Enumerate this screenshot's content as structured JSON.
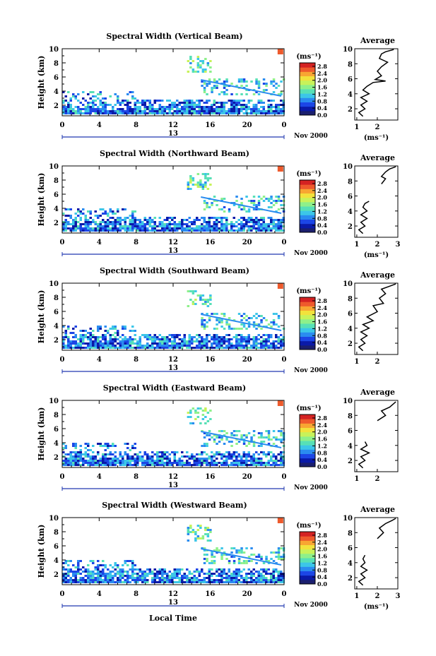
{
  "colors": {
    "colormap": [
      "#1b1f6e",
      "#0a1aa8",
      "#1c46e6",
      "#2a8cf0",
      "#3cc6e8",
      "#57e0b6",
      "#8ef08a",
      "#c8f25a",
      "#f2e23c",
      "#f8a632",
      "#ee5a2c",
      "#d42222"
    ],
    "axis": "#000000",
    "time_axis_line": "#2038b0"
  },
  "figure": {
    "xlabel": "Local Time",
    "date_label": "Nov 2000",
    "day_label": "13",
    "avg_xlabel": "(ms⁻¹)",
    "colorbar_label": "(ms⁻¹)"
  },
  "chart_data": [
    {
      "type": "heatmap",
      "title": "Spectral Width (Vertical Beam)",
      "ylabel": "Height (km)",
      "x_ticks": [
        "0",
        "4",
        "8",
        "12",
        "16",
        "20",
        "0"
      ],
      "y_ticks": [
        "2",
        "4",
        "6",
        "8",
        "10"
      ],
      "xlim": [
        0,
        24
      ],
      "ylim": [
        0.5,
        10
      ],
      "colorbar_ticks": [
        "0.0",
        "0.4",
        "0.8",
        "1.2",
        "1.6",
        "2.0",
        "2.4",
        "2.8"
      ],
      "colorbar_range": [
        0,
        3.0
      ],
      "regions": [
        {
          "x": [
            0,
            24
          ],
          "y": [
            0.8,
            2.8
          ],
          "v": 0.8
        },
        {
          "x": [
            0,
            8
          ],
          "y": [
            2.8,
            4.0
          ],
          "v": 0.9
        },
        {
          "x": [
            13.5,
            16
          ],
          "y": [
            6.8,
            9.0
          ],
          "v": 1.4
        },
        {
          "x": [
            15,
            24
          ],
          "y": [
            3.5,
            5.8
          ],
          "v": 1.2
        }
      ],
      "average": {
        "title": "Average",
        "xlabel": "(ms⁻¹)",
        "x_ticks": [
          "1",
          "2"
        ],
        "xlim": [
          0.9,
          3.0
        ],
        "y_ticks": [
          "2",
          "4",
          "6",
          "8",
          "10"
        ],
        "ylim": [
          0.5,
          10
        ],
        "profile": [
          [
            1.3,
            1.0
          ],
          [
            1.1,
            1.5
          ],
          [
            1.4,
            2.0
          ],
          [
            1.2,
            2.5
          ],
          [
            1.5,
            3.0
          ],
          [
            1.2,
            3.5
          ],
          [
            1.6,
            4.0
          ],
          [
            1.3,
            4.5
          ],
          [
            1.5,
            5.0
          ],
          [
            1.8,
            5.5
          ],
          [
            2.4,
            5.7
          ],
          [
            1.9,
            5.9
          ],
          [
            2.2,
            6.4
          ],
          [
            2.0,
            7.0
          ],
          [
            2.2,
            7.6
          ],
          [
            2.5,
            8.2
          ],
          [
            2.1,
            8.7
          ],
          [
            2.2,
            9.3
          ],
          [
            2.4,
            9.6
          ],
          [
            2.8,
            9.9
          ]
        ]
      }
    },
    {
      "type": "heatmap",
      "title": "Spectral Width (Northward Beam)",
      "ylabel": "Height (km)",
      "x_ticks": [
        "0",
        "4",
        "8",
        "12",
        "16",
        "20",
        "0"
      ],
      "y_ticks": [
        "2",
        "4",
        "6",
        "8",
        "10"
      ],
      "xlim": [
        0,
        24
      ],
      "ylim": [
        0.5,
        10
      ],
      "colorbar_ticks": [
        "0.0",
        "0.4",
        "0.8",
        "1.2",
        "1.6",
        "2.0",
        "2.4",
        "2.8"
      ],
      "colorbar_range": [
        0,
        3.0
      ],
      "regions": [
        {
          "x": [
            0,
            24
          ],
          "y": [
            0.8,
            2.8
          ],
          "v": 0.8
        },
        {
          "x": [
            0,
            8
          ],
          "y": [
            2.8,
            4.0
          ],
          "v": 0.9
        },
        {
          "x": [
            13.5,
            16
          ],
          "y": [
            6.8,
            9.0
          ],
          "v": 1.4
        },
        {
          "x": [
            15,
            24
          ],
          "y": [
            3.5,
            5.8
          ],
          "v": 1.2
        }
      ],
      "average": {
        "title": "Average",
        "xlabel": "(ms⁻¹)",
        "x_ticks": [
          "1",
          "2",
          "3"
        ],
        "xlim": [
          0.9,
          3.0
        ],
        "y_ticks": [
          "2",
          "4",
          "6",
          "8",
          "10"
        ],
        "ylim": [
          0.5,
          10
        ],
        "profile": [
          [
            1.3,
            1.0
          ],
          [
            1.1,
            1.5
          ],
          [
            1.4,
            2.0
          ],
          [
            1.2,
            2.5
          ],
          [
            1.5,
            3.0
          ],
          [
            1.2,
            3.5
          ],
          [
            1.5,
            4.0
          ],
          [
            1.3,
            4.5
          ],
          [
            1.4,
            5.0
          ],
          [
            1.6,
            5.3
          ],
          [
            2.2,
            7.6
          ],
          [
            2.4,
            8.3
          ],
          [
            2.2,
            8.6
          ],
          [
            2.4,
            9.2
          ],
          [
            2.6,
            9.6
          ],
          [
            2.9,
            9.9
          ]
        ]
      }
    },
    {
      "type": "heatmap",
      "title": "Spectral Width (Southward Beam)",
      "ylabel": "Height (km)",
      "x_ticks": [
        "0",
        "4",
        "8",
        "12",
        "16",
        "20",
        "0"
      ],
      "y_ticks": [
        "2",
        "4",
        "6",
        "8",
        "10"
      ],
      "xlim": [
        0,
        24
      ],
      "ylim": [
        0.5,
        10
      ],
      "colorbar_ticks": [
        "0.0",
        "0.4",
        "0.8",
        "1.2",
        "1.6",
        "2.0",
        "2.4",
        "2.8"
      ],
      "colorbar_range": [
        0,
        3.0
      ],
      "regions": [
        {
          "x": [
            0,
            24
          ],
          "y": [
            0.8,
            2.8
          ],
          "v": 0.8
        },
        {
          "x": [
            0,
            8
          ],
          "y": [
            2.8,
            4.0
          ],
          "v": 0.9
        },
        {
          "x": [
            13.5,
            16
          ],
          "y": [
            6.8,
            9.0
          ],
          "v": 1.4
        },
        {
          "x": [
            15,
            24
          ],
          "y": [
            3.5,
            5.8
          ],
          "v": 1.2
        }
      ],
      "average": {
        "title": "Average",
        "xlabel": "",
        "x_ticks": [
          "1",
          "2"
        ],
        "xlim": [
          0.9,
          3.0
        ],
        "y_ticks": [
          "2",
          "4",
          "6",
          "8",
          "10"
        ],
        "ylim": [
          0.5,
          10
        ],
        "profile": [
          [
            1.3,
            1.0
          ],
          [
            1.1,
            1.5
          ],
          [
            1.4,
            2.0
          ],
          [
            1.2,
            2.5
          ],
          [
            1.5,
            3.0
          ],
          [
            1.2,
            3.5
          ],
          [
            1.6,
            4.0
          ],
          [
            1.3,
            4.5
          ],
          [
            1.8,
            5.0
          ],
          [
            1.5,
            5.5
          ],
          [
            2.0,
            6.2
          ],
          [
            1.8,
            7.0
          ],
          [
            2.3,
            7.3
          ],
          [
            2.1,
            8.0
          ],
          [
            2.4,
            8.6
          ],
          [
            2.2,
            9.2
          ],
          [
            2.6,
            9.6
          ],
          [
            2.9,
            9.9
          ]
        ]
      }
    },
    {
      "type": "heatmap",
      "title": "Spectral Width (Eastward Beam)",
      "ylabel": "Height (km)",
      "x_ticks": [
        "0",
        "4",
        "8",
        "12",
        "16",
        "20",
        "0"
      ],
      "y_ticks": [
        "2",
        "4",
        "6",
        "8",
        "10"
      ],
      "xlim": [
        0,
        24
      ],
      "ylim": [
        0.5,
        10
      ],
      "colorbar_ticks": [
        "0.0",
        "0.4",
        "0.8",
        "1.2",
        "1.6",
        "2.0",
        "2.4",
        "2.8"
      ],
      "colorbar_range": [
        0,
        3.0
      ],
      "regions": [
        {
          "x": [
            0,
            24
          ],
          "y": [
            0.8,
            2.8
          ],
          "v": 0.8
        },
        {
          "x": [
            0,
            8
          ],
          "y": [
            2.8,
            4.0
          ],
          "v": 0.9
        },
        {
          "x": [
            13.5,
            16
          ],
          "y": [
            6.8,
            9.0
          ],
          "v": 1.4
        },
        {
          "x": [
            15,
            24
          ],
          "y": [
            3.5,
            5.8
          ],
          "v": 1.2
        }
      ],
      "average": {
        "title": "Average",
        "xlabel": "",
        "x_ticks": [
          "1",
          "2"
        ],
        "xlim": [
          0.9,
          3.0
        ],
        "y_ticks": [
          "2",
          "4",
          "6",
          "8",
          "10"
        ],
        "ylim": [
          0.5,
          10
        ],
        "profile": [
          [
            1.3,
            1.0
          ],
          [
            1.1,
            1.5
          ],
          [
            1.4,
            2.0
          ],
          [
            1.2,
            2.5
          ],
          [
            1.6,
            3.0
          ],
          [
            1.2,
            3.5
          ],
          [
            1.5,
            4.0
          ],
          [
            1.4,
            4.5
          ],
          [
            2.0,
            7.3
          ],
          [
            2.4,
            8.0
          ],
          [
            2.2,
            8.6
          ],
          [
            2.6,
            9.1
          ],
          [
            2.9,
            9.8
          ]
        ]
      }
    },
    {
      "type": "heatmap",
      "title": "Spectral Width (Westward Beam)",
      "ylabel": "Height (km)",
      "x_ticks": [
        "0",
        "4",
        "8",
        "12",
        "16",
        "20",
        "0"
      ],
      "y_ticks": [
        "2",
        "4",
        "6",
        "8",
        "10"
      ],
      "xlim": [
        0,
        24
      ],
      "ylim": [
        0.5,
        10
      ],
      "colorbar_ticks": [
        "0.0",
        "0.4",
        "0.8",
        "1.2",
        "1.6",
        "2.0",
        "2.4",
        "2.8"
      ],
      "colorbar_range": [
        0,
        3.0
      ],
      "regions": [
        {
          "x": [
            0,
            24
          ],
          "y": [
            0.8,
            2.8
          ],
          "v": 0.8
        },
        {
          "x": [
            0,
            8
          ],
          "y": [
            2.8,
            4.0
          ],
          "v": 0.9
        },
        {
          "x": [
            13.5,
            16
          ],
          "y": [
            6.8,
            9.0
          ],
          "v": 1.4
        },
        {
          "x": [
            15,
            24
          ],
          "y": [
            3.5,
            5.8
          ],
          "v": 1.2
        }
      ],
      "average": {
        "title": "Average",
        "xlabel": "(ms⁻¹)",
        "x_ticks": [
          "1",
          "2",
          "3"
        ],
        "xlim": [
          0.9,
          3.0
        ],
        "y_ticks": [
          "2",
          "4",
          "6",
          "8",
          "10"
        ],
        "ylim": [
          0.5,
          10
        ],
        "profile": [
          [
            1.3,
            1.0
          ],
          [
            1.1,
            1.5
          ],
          [
            1.4,
            2.0
          ],
          [
            1.2,
            2.5
          ],
          [
            1.5,
            3.0
          ],
          [
            1.2,
            3.5
          ],
          [
            1.4,
            4.0
          ],
          [
            1.3,
            4.5
          ],
          [
            1.4,
            5.0
          ],
          [
            2.0,
            7.2
          ],
          [
            2.3,
            8.0
          ],
          [
            2.1,
            8.6
          ],
          [
            2.4,
            9.2
          ],
          [
            2.7,
            9.6
          ],
          [
            2.9,
            9.9
          ]
        ]
      }
    }
  ]
}
